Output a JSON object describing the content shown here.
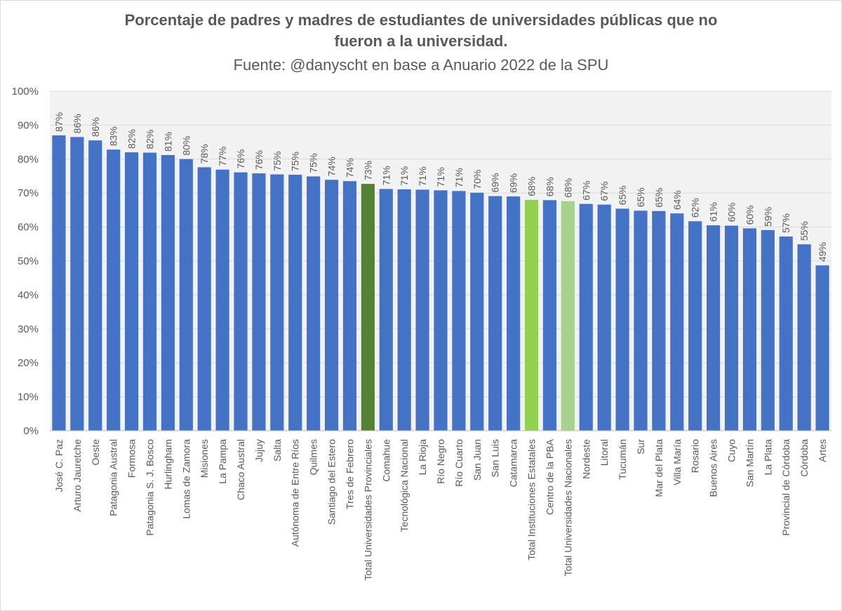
{
  "chart_data": {
    "type": "bar",
    "title": "Porcentaje de padres y madres de estudiantes de universidades públicas que no fueron a la universidad.",
    "title_lines": [
      "Porcentaje de padres y madres de estudiantes de universidades públicas que no",
      "fueron a la universidad."
    ],
    "subtitle": "Fuente: @danyscht en base a Anuario 2022 de la SPU",
    "xlabel": "",
    "ylabel": "",
    "ylim": [
      0,
      100
    ],
    "y_ticks": [
      "0%",
      "10%",
      "20%",
      "30%",
      "40%",
      "50%",
      "60%",
      "70%",
      "80%",
      "90%",
      "100%"
    ],
    "grid": true,
    "legend": "none",
    "colors": {
      "default": "#4472c4",
      "Total Universidades Provinciales": "#548235",
      "Total Instituciones Estatales": "#92d050",
      "Total Universidades Nacionales": "#a9d18e",
      "plot_background": "#f2f2f2",
      "gridline": "#d9d9d9",
      "text": "#595959"
    },
    "categories": [
      "José C. Paz",
      "Arturo Jauretche",
      "Oeste",
      "Patagonia Austral",
      "Formosa",
      "Patagonia S. J. Bosco",
      "Hurlingham",
      "Lomas de Zamora",
      "Misiones",
      "La Pampa",
      "Chaco Austral",
      "Jujuy",
      "Salta",
      "Autónoma de Entre Ríos",
      "Quilmes",
      "Santiago del Estero",
      "Tres de Febrero",
      "Total Universidades Provinciales",
      "Comahue",
      "Tecnológica Nacional",
      "La Rioja",
      "Río Negro",
      "Río Cuarto",
      "San Juan",
      "San Luis",
      "Catamarca",
      "Total Instituciones Estatales",
      "Centro de la PBA",
      "Total Universidades Nacionales",
      "Nordeste",
      "Litoral",
      "Tucumán",
      "Sur",
      "Mar del Plata",
      "Villa María",
      "Rosario",
      "Buenos Aires",
      "Cuyo",
      "San Martín",
      "La Plata",
      "Provincial de Córdoba",
      "Córdoba",
      "Artes"
    ],
    "values": [
      87,
      86.5,
      85.5,
      82.8,
      82,
      81.9,
      81.2,
      80,
      77.6,
      76.9,
      76.1,
      75.8,
      75.5,
      75.4,
      74.9,
      73.9,
      73.5,
      72.7,
      71.2,
      71.1,
      71,
      70.8,
      70.6,
      70.1,
      69.1,
      69,
      68,
      67.9,
      67.6,
      66.8,
      66.6,
      65.4,
      64.8,
      64.7,
      64,
      61.7,
      60.5,
      60.4,
      59.6,
      59.1,
      57.2,
      54.9,
      48.7
    ],
    "data_labels": [
      "87%",
      "86%",
      "86%",
      "83%",
      "82%",
      "82%",
      "81%",
      "80%",
      "78%",
      "77%",
      "76%",
      "76%",
      "75%",
      "75%",
      "75%",
      "74%",
      "74%",
      "73%",
      "71%",
      "71%",
      "71%",
      "71%",
      "71%",
      "70%",
      "69%",
      "69%",
      "68%",
      "68%",
      "68%",
      "67%",
      "67%",
      "65%",
      "65%",
      "65%",
      "64%",
      "62%",
      "61%",
      "60%",
      "60%",
      "59%",
      "57%",
      "55%",
      "49%"
    ]
  }
}
